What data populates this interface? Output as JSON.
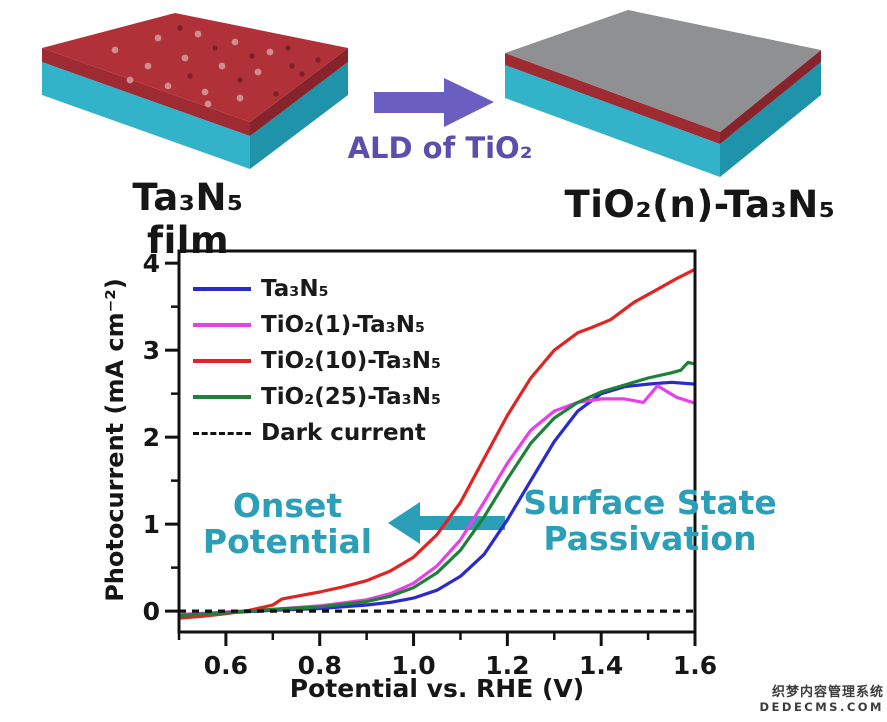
{
  "figure": {
    "top": {
      "left_label": "Ta₃N₅ film",
      "arrow_label": "ALD of TiO₂",
      "right_label": "TiO₂(n)-Ta₃N₅",
      "colors": {
        "slab_red_top": "#b13138",
        "slab_red_left": "#9e2a32",
        "slab_red_right": "#87232b",
        "slab_cyan_left": "#33b3c9",
        "slab_cyan_right": "#1f93a9",
        "slab_gray_top": "#8e9091",
        "dot_light": "#d08d8d",
        "dot_dark": "#7a1f26",
        "arrow_purple": "#6a5ec0",
        "arrow_text_purple": "#5b4fae"
      }
    },
    "annotations": {
      "onset_line1": "Onset",
      "onset_line2": "Potential",
      "surface_line1": "Surface State",
      "surface_line2": "Passivation",
      "color": "#2b9fb8"
    },
    "watermark": {
      "line1": "织梦内容管理系统",
      "line2": "DEDECMS.COM"
    }
  },
  "chart_data": {
    "type": "line",
    "title": "",
    "xlabel": "Potential vs. RHE (V)",
    "ylabel": "Photocurrent (mA cm⁻²)",
    "xlim": [
      0.5,
      1.6
    ],
    "ylim": [
      -0.24,
      4.14
    ],
    "x_major_ticks": [
      0.6,
      0.8,
      1.0,
      1.2,
      1.4,
      1.6
    ],
    "x_tick_labels": [
      "0.6",
      "0.8",
      "1.0",
      "1.2",
      "1.4",
      "1.6"
    ],
    "x_minor_ticks": [
      0.5,
      0.7,
      0.9,
      1.1,
      1.3,
      1.5
    ],
    "y_major_ticks": [
      0,
      1,
      2,
      3,
      4
    ],
    "y_tick_labels": [
      "0",
      "1",
      "2",
      "3",
      "4"
    ],
    "y_minor_ticks": [
      0.5,
      1.5,
      2.5,
      3.5
    ],
    "grid": false,
    "legend_position": "top-left",
    "axis_color": "#111111",
    "series": [
      {
        "name": "Ta₃N₅",
        "color": "#2a2ace",
        "dash": null,
        "points": [
          [
            0.5,
            -0.05
          ],
          [
            0.6,
            -0.02
          ],
          [
            0.7,
            0.01
          ],
          [
            0.8,
            0.03
          ],
          [
            0.9,
            0.07
          ],
          [
            0.95,
            0.1
          ],
          [
            1.0,
            0.15
          ],
          [
            1.05,
            0.24
          ],
          [
            1.1,
            0.4
          ],
          [
            1.15,
            0.65
          ],
          [
            1.2,
            1.05
          ],
          [
            1.25,
            1.5
          ],
          [
            1.3,
            1.95
          ],
          [
            1.35,
            2.3
          ],
          [
            1.4,
            2.5
          ],
          [
            1.45,
            2.58
          ],
          [
            1.5,
            2.61
          ],
          [
            1.55,
            2.63
          ],
          [
            1.6,
            2.61
          ]
        ]
      },
      {
        "name": "TiO₂(1)-Ta₃N₅",
        "color": "#e93fe9",
        "dash": null,
        "points": [
          [
            0.5,
            -0.04
          ],
          [
            0.6,
            -0.01
          ],
          [
            0.7,
            0.02
          ],
          [
            0.8,
            0.06
          ],
          [
            0.9,
            0.13
          ],
          [
            0.95,
            0.2
          ],
          [
            1.0,
            0.32
          ],
          [
            1.05,
            0.52
          ],
          [
            1.1,
            0.82
          ],
          [
            1.15,
            1.25
          ],
          [
            1.2,
            1.7
          ],
          [
            1.25,
            2.08
          ],
          [
            1.3,
            2.3
          ],
          [
            1.35,
            2.4
          ],
          [
            1.4,
            2.44
          ],
          [
            1.45,
            2.44
          ],
          [
            1.49,
            2.4
          ],
          [
            1.52,
            2.59
          ],
          [
            1.56,
            2.46
          ],
          [
            1.6,
            2.39
          ]
        ]
      },
      {
        "name": "TiO₂(10)-Ta₃N₅",
        "color": "#e02424",
        "dash": null,
        "points": [
          [
            0.5,
            -0.08
          ],
          [
            0.55,
            -0.06
          ],
          [
            0.6,
            -0.03
          ],
          [
            0.65,
            0.01
          ],
          [
            0.7,
            0.07
          ],
          [
            0.72,
            0.14
          ],
          [
            0.75,
            0.17
          ],
          [
            0.8,
            0.22
          ],
          [
            0.85,
            0.28
          ],
          [
            0.9,
            0.35
          ],
          [
            0.95,
            0.46
          ],
          [
            1.0,
            0.62
          ],
          [
            1.05,
            0.88
          ],
          [
            1.1,
            1.25
          ],
          [
            1.15,
            1.75
          ],
          [
            1.2,
            2.25
          ],
          [
            1.25,
            2.68
          ],
          [
            1.3,
            3.0
          ],
          [
            1.35,
            3.2
          ],
          [
            1.38,
            3.26
          ],
          [
            1.42,
            3.35
          ],
          [
            1.47,
            3.55
          ],
          [
            1.52,
            3.7
          ],
          [
            1.56,
            3.82
          ],
          [
            1.6,
            3.93
          ]
        ]
      },
      {
        "name": "TiO₂(25)-Ta₃N₅",
        "color": "#1f8038",
        "dash": null,
        "points": [
          [
            0.5,
            -0.05
          ],
          [
            0.6,
            -0.02
          ],
          [
            0.7,
            0.02
          ],
          [
            0.8,
            0.05
          ],
          [
            0.9,
            0.11
          ],
          [
            0.95,
            0.17
          ],
          [
            1.0,
            0.27
          ],
          [
            1.05,
            0.44
          ],
          [
            1.1,
            0.7
          ],
          [
            1.15,
            1.08
          ],
          [
            1.2,
            1.52
          ],
          [
            1.25,
            1.93
          ],
          [
            1.3,
            2.22
          ],
          [
            1.35,
            2.4
          ],
          [
            1.4,
            2.52
          ],
          [
            1.45,
            2.6
          ],
          [
            1.5,
            2.68
          ],
          [
            1.55,
            2.74
          ],
          [
            1.57,
            2.77
          ],
          [
            1.585,
            2.86
          ],
          [
            1.6,
            2.84
          ]
        ]
      },
      {
        "name": "Dark current",
        "color": "#111111",
        "dash": "7 6",
        "points": [
          [
            0.5,
            0.0
          ],
          [
            1.6,
            0.0
          ]
        ]
      }
    ]
  }
}
